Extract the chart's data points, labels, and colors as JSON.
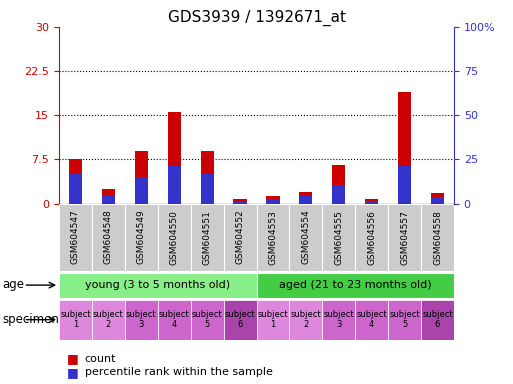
{
  "title": "GDS3939 / 1392671_at",
  "samples": [
    "GSM604547",
    "GSM604548",
    "GSM604549",
    "GSM604550",
    "GSM604551",
    "GSM604552",
    "GSM604553",
    "GSM604554",
    "GSM604555",
    "GSM604556",
    "GSM604557",
    "GSM604558"
  ],
  "count_values": [
    7.5,
    2.5,
    9.0,
    15.5,
    9.0,
    0.8,
    1.2,
    2.0,
    6.5,
    0.7,
    19.0,
    1.8
  ],
  "percentile_values": [
    16.5,
    4.5,
    15.0,
    21.0,
    16.5,
    1.5,
    2.4,
    4.5,
    10.5,
    1.2,
    21.0,
    3.6
  ],
  "ylim_left": [
    0,
    30
  ],
  "ylim_right": [
    0,
    100
  ],
  "yticks_left": [
    0,
    7.5,
    15,
    22.5,
    30
  ],
  "yticks_right": [
    0,
    25,
    50,
    75,
    100
  ],
  "ytick_labels_left": [
    "0",
    "7.5",
    "15",
    "22.5",
    "30"
  ],
  "ytick_labels_right": [
    "0",
    "25",
    "50",
    "75",
    "100%"
  ],
  "bar_color_count": "#cc0000",
  "bar_color_pct": "#3333cc",
  "bar_width": 0.4,
  "age_groups": [
    {
      "label": "young (3 to 5 months old)",
      "start": 0,
      "end": 6,
      "color": "#88ee88"
    },
    {
      "label": "aged (21 to 23 months old)",
      "start": 6,
      "end": 12,
      "color": "#44cc44"
    }
  ],
  "specimen_colors": [
    "#dd88dd",
    "#dd88dd",
    "#cc66cc",
    "#cc66cc",
    "#cc66cc",
    "#aa44aa",
    "#dd88dd",
    "#dd88dd",
    "#cc66cc",
    "#cc66cc",
    "#cc66cc",
    "#aa44aa"
  ],
  "specimen_labels": [
    "subject\n1",
    "subject\n2",
    "subject\n3",
    "subject\n4",
    "subject\n5",
    "subject\n6",
    "subject\n1",
    "subject\n2",
    "subject\n3",
    "subject\n4",
    "subject\n5",
    "subject\n6"
  ],
  "age_label": "age",
  "specimen_label": "specimen",
  "legend_count": "count",
  "legend_pct": "percentile rank within the sample",
  "tick_label_fontsize": 8,
  "sample_bg_color": "#cccccc",
  "plot_bg_color": "#ffffff"
}
